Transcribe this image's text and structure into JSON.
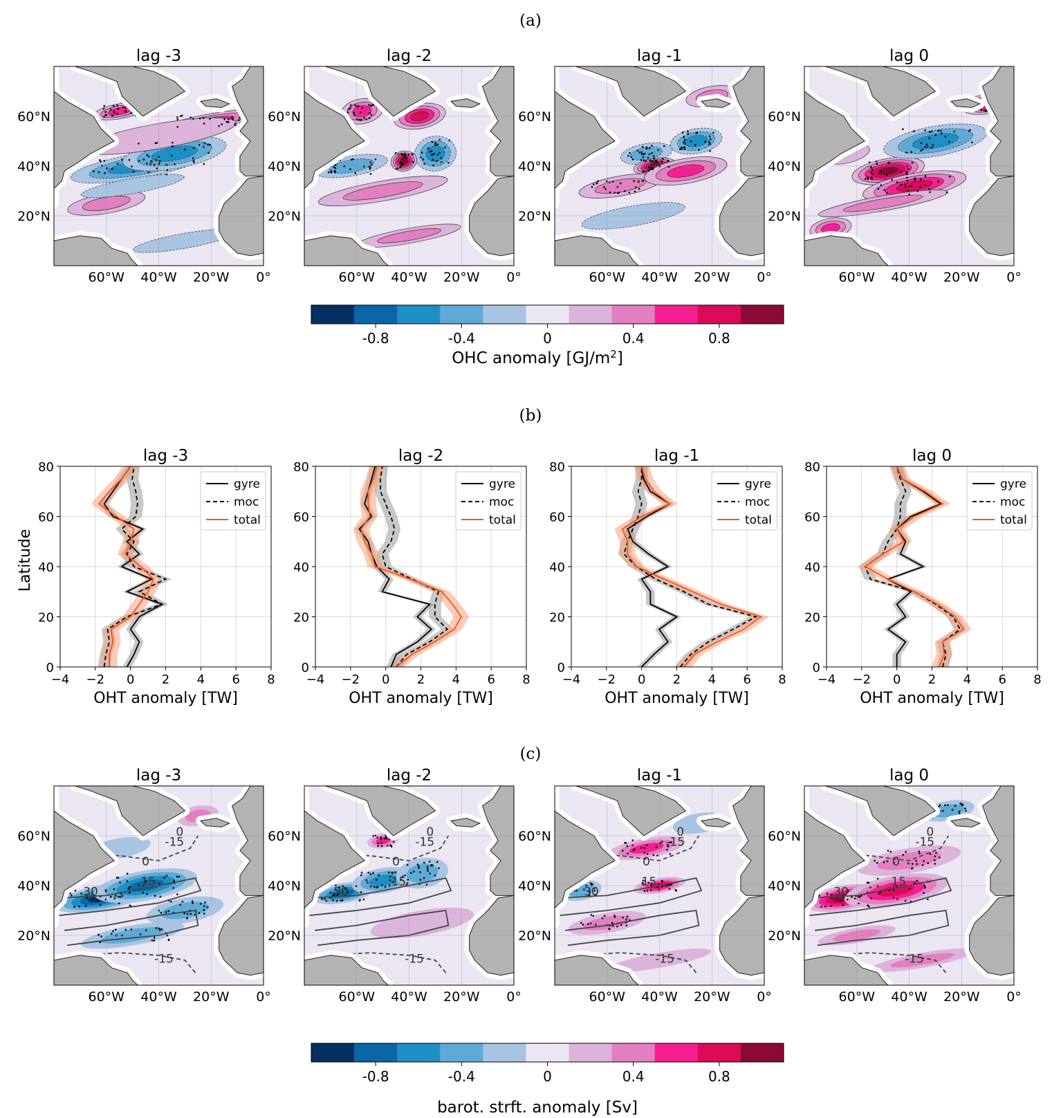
{
  "figure": {
    "panel_labels": [
      "(a)",
      "(b)",
      "(c)"
    ],
    "colors": {
      "land": "#b3b3b3",
      "coast_halo": "#ffffff",
      "neutral": "#ebe6f2",
      "line_black": "#000000",
      "total_line": "#f0561e",
      "total_shade": "#f7a27e",
      "gray_shade": "#9a9a9a"
    }
  },
  "colorbar_a": {
    "label_prefix": "OHC anomaly [GJ/m",
    "label_sup": "2",
    "label_suffix": "]",
    "ticks": [
      "-0.8",
      "-0.4",
      "0",
      "0.4",
      "0.8"
    ],
    "tick_values": [
      -0.8,
      -0.4,
      0,
      0.4,
      0.8
    ],
    "bounds": [
      -1.1,
      1.1
    ],
    "colors": [
      "#053061",
      "#0b66a6",
      "#1e8fc4",
      "#5eaad6",
      "#a9c4e3",
      "#ebe6f2",
      "#dcb3da",
      "#e27fc0",
      "#f51f92",
      "#dc0a59",
      "#8a0a34"
    ]
  },
  "colorbar_c": {
    "label": "barot. strft. anomaly [Sv]",
    "ticks": [
      "-0.8",
      "-0.4",
      "0",
      "0.4",
      "0.8"
    ],
    "tick_values": [
      -0.8,
      -0.4,
      0,
      0.4,
      0.8
    ],
    "bounds": [
      -1.1,
      1.1
    ],
    "colors": [
      "#053061",
      "#0b66a6",
      "#1e8fc4",
      "#5eaad6",
      "#a9c4e3",
      "#ebe6f2",
      "#dcb3da",
      "#e27fc0",
      "#f51f92",
      "#dc0a59",
      "#8a0a34"
    ]
  },
  "maps": {
    "titles": [
      "lag -3",
      "lag -2",
      "lag -1",
      "lag 0"
    ],
    "lat_ticks": [
      "60°N",
      "40°N",
      "20°N"
    ],
    "lat_values": [
      60,
      40,
      20
    ],
    "lon_ticks": [
      "60°W",
      "40°W",
      "20°W",
      "0°"
    ],
    "lon_values": [
      -60,
      -40,
      -20,
      0
    ],
    "extent": {
      "lon": [
        -80,
        0
      ],
      "lat": [
        0,
        80
      ]
    },
    "row_a": [
      {
        "anoms": [
          [
            -48,
            40,
            26,
            5,
            -3
          ],
          [
            -34,
            45,
            20,
            6,
            -3
          ],
          [
            -55,
            62,
            10,
            3,
            3
          ],
          [
            -20,
            58,
            20,
            3,
            3
          ],
          [
            -40,
            52,
            30,
            5,
            1
          ],
          [
            -60,
            25,
            15,
            4,
            2
          ],
          [
            -30,
            10,
            20,
            3,
            -1
          ],
          [
            -50,
            32,
            20,
            3,
            -1
          ]
        ]
      },
      {
        "anoms": [
          [
            -62,
            40,
            14,
            4,
            -2
          ],
          [
            -30,
            45,
            8,
            7,
            -3
          ],
          [
            -42,
            42,
            5,
            4,
            5
          ],
          [
            -58,
            62,
            8,
            5,
            3
          ],
          [
            -36,
            60,
            10,
            5,
            4
          ],
          [
            -50,
            30,
            25,
            4,
            2
          ],
          [
            -40,
            12,
            20,
            3,
            2
          ]
        ]
      },
      {
        "anoms": [
          [
            -26,
            50,
            10,
            5,
            -3
          ],
          [
            -45,
            45,
            10,
            4,
            -2
          ],
          [
            -42,
            40,
            8,
            3,
            5
          ],
          [
            -55,
            32,
            16,
            4,
            2
          ],
          [
            -30,
            38,
            16,
            5,
            3
          ],
          [
            -50,
            20,
            20,
            4,
            -1
          ],
          [
            -20,
            68,
            10,
            4,
            2
          ]
        ]
      },
      {
        "anoms": [
          [
            -48,
            38,
            14,
            5,
            5
          ],
          [
            -38,
            32,
            20,
            5,
            4
          ],
          [
            -30,
            50,
            20,
            6,
            -3
          ],
          [
            -10,
            65,
            10,
            4,
            4
          ],
          [
            -65,
            45,
            10,
            4,
            1
          ],
          [
            -70,
            15,
            8,
            4,
            3
          ],
          [
            -50,
            25,
            25,
            3,
            2
          ]
        ]
      }
    ],
    "row_c": [
      {
        "anoms": [
          [
            -62,
            35,
            18,
            5,
            -5
          ],
          [
            -45,
            40,
            20,
            6,
            -4
          ],
          [
            -30,
            30,
            15,
            5,
            -2
          ],
          [
            -50,
            20,
            20,
            4,
            -2
          ],
          [
            -25,
            68,
            8,
            4,
            2
          ],
          [
            -55,
            55,
            12,
            4,
            -1
          ]
        ]
      },
      {
        "anoms": [
          [
            -65,
            37,
            12,
            4,
            -4
          ],
          [
            -50,
            42,
            12,
            5,
            -3
          ],
          [
            -35,
            45,
            10,
            6,
            -2
          ],
          [
            -50,
            58,
            6,
            3,
            3
          ],
          [
            -35,
            25,
            20,
            5,
            1
          ]
        ]
      },
      {
        "anoms": [
          [
            -40,
            40,
            10,
            3,
            4
          ],
          [
            -45,
            55,
            15,
            4,
            3
          ],
          [
            -60,
            25,
            15,
            4,
            2
          ],
          [
            -70,
            38,
            8,
            4,
            -2
          ],
          [
            -25,
            65,
            10,
            4,
            -1
          ],
          [
            -40,
            10,
            20,
            3,
            1
          ]
        ]
      },
      {
        "anoms": [
          [
            -65,
            35,
            15,
            5,
            5
          ],
          [
            -45,
            38,
            20,
            6,
            4
          ],
          [
            -40,
            50,
            20,
            5,
            2
          ],
          [
            -25,
            70,
            10,
            4,
            -2
          ],
          [
            -60,
            20,
            15,
            3,
            2
          ],
          [
            -35,
            10,
            20,
            3,
            2
          ]
        ]
      }
    ],
    "contour_labels": [
      "-15",
      "0",
      "15",
      "30"
    ]
  },
  "chart_data": {
    "type": "line",
    "title": "",
    "xlabel": "OHT anomaly [TW]",
    "ylabel": "Latitude",
    "xlim": [
      -4,
      8
    ],
    "ylim": [
      0,
      80
    ],
    "xticks": [
      "−4",
      "−2",
      "0",
      "2",
      "4",
      "6",
      "8"
    ],
    "xtick_values": [
      -4,
      -2,
      0,
      2,
      4,
      6,
      8
    ],
    "yticks": [
      "0",
      "20",
      "40",
      "60",
      "80"
    ],
    "ytick_values": [
      0,
      20,
      40,
      60,
      80
    ],
    "legend": [
      "gyre",
      "moc",
      "total"
    ],
    "lat": [
      0,
      5,
      10,
      15,
      20,
      25,
      30,
      35,
      40,
      45,
      50,
      55,
      60,
      65,
      70,
      75,
      80
    ],
    "panels": [
      {
        "title": "lag -3",
        "series": [
          {
            "name": "gyre",
            "values": [
              -0.2,
              0.2,
              0.5,
              0.0,
              0.5,
              1.8,
              -0.2,
              1.2,
              -0.5,
              0.5,
              -0.2,
              0.7,
              -1.0,
              -1.5,
              -1.0,
              -0.5,
              0.0
            ]
          },
          {
            "name": "moc",
            "values": [
              -1.5,
              -1.4,
              -1.2,
              -1.3,
              -0.2,
              1.8,
              0.5,
              2.0,
              0.2,
              -0.2,
              0.2,
              -0.5,
              0.3,
              0.4,
              0.3,
              0.1,
              0.2
            ]
          },
          {
            "name": "total",
            "values": [
              -1.2,
              -1.2,
              -1.0,
              -1.1,
              0.0,
              0.5,
              1.0,
              1.3,
              0.6,
              -0.3,
              0.0,
              0.2,
              -0.8,
              -1.8,
              -1.2,
              -0.5,
              0.0
            ]
          }
        ]
      },
      {
        "title": "lag -2",
        "series": [
          {
            "name": "gyre",
            "values": [
              0.3,
              0.6,
              1.8,
              2.6,
              1.8,
              2.5,
              -0.2,
              0.2,
              -0.5,
              -0.8,
              -1.0,
              -1.5,
              -0.8,
              -1.2,
              -1.0,
              -0.8,
              -0.6
            ]
          },
          {
            "name": "moc",
            "values": [
              0.6,
              1.2,
              2.5,
              3.5,
              2.8,
              2.8,
              3.0,
              1.5,
              0.0,
              -0.2,
              0.3,
              0.5,
              0.3,
              0.0,
              -0.3,
              -0.3,
              -0.2
            ]
          },
          {
            "name": "total",
            "values": [
              0.6,
              1.5,
              2.8,
              3.9,
              4.3,
              3.8,
              3.2,
              1.4,
              -0.6,
              -0.8,
              -1.2,
              -1.4,
              -0.9,
              -1.0,
              -1.0,
              -0.7,
              -0.5
            ]
          }
        ]
      },
      {
        "title": "lag -1",
        "series": [
          {
            "name": "gyre",
            "values": [
              0.0,
              0.7,
              1.5,
              1.0,
              2.0,
              0.5,
              0.5,
              0.0,
              1.5,
              0.4,
              -0.5,
              -0.8,
              0.3,
              1.6,
              0.5,
              0.1,
              0.0
            ]
          },
          {
            "name": "moc",
            "values": [
              2.2,
              2.8,
              3.8,
              5.2,
              6.5,
              3.8,
              2.4,
              0.8,
              -0.3,
              -1.0,
              -0.8,
              -0.5,
              -0.2,
              0.0,
              -0.2,
              0.0,
              0.0
            ]
          },
          {
            "name": "total",
            "values": [
              2.4,
              3.0,
              4.3,
              5.8,
              6.8,
              4.5,
              2.9,
              1.3,
              -0.3,
              -0.8,
              -0.8,
              -1.1,
              0.0,
              1.6,
              0.7,
              0.2,
              0.0
            ]
          }
        ]
      },
      {
        "title": "lag 0",
        "series": [
          {
            "name": "gyre",
            "values": [
              0.0,
              0.0,
              0.5,
              -0.5,
              0.5,
              0.0,
              0.8,
              -0.5,
              1.5,
              0.2,
              0.5,
              0.0,
              0.8,
              2.5,
              1.5,
              0.3,
              0.0
            ]
          },
          {
            "name": "moc",
            "values": [
              2.6,
              2.8,
              2.6,
              3.6,
              3.2,
              2.2,
              1.0,
              -1.5,
              -1.8,
              -0.8,
              -0.5,
              0.0,
              0.2,
              0.2,
              0.5,
              0.2,
              0.0
            ]
          },
          {
            "name": "total",
            "values": [
              2.4,
              2.7,
              2.6,
              3.8,
              3.3,
              2.3,
              1.0,
              -0.5,
              -1.8,
              -0.8,
              0.4,
              0.0,
              1.0,
              2.6,
              1.6,
              0.3,
              0.0
            ]
          }
        ]
      }
    ]
  }
}
